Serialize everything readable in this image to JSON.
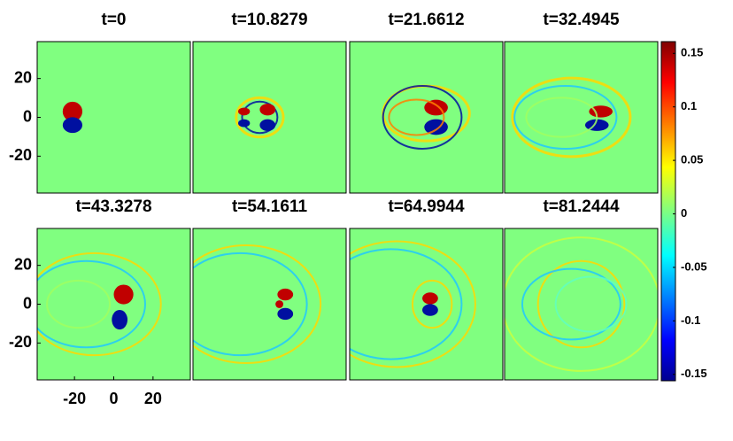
{
  "panels": [
    {
      "title": "t=0"
    },
    {
      "title": "t=10.8279"
    },
    {
      "title": "t=21.6612"
    },
    {
      "title": "t=32.4945"
    },
    {
      "title": "t=43.3278"
    },
    {
      "title": "t=54.1611"
    },
    {
      "title": "t=64.9944"
    },
    {
      "title": "t=81.2444"
    }
  ],
  "axes": {
    "xlim": [
      -39,
      39
    ],
    "ylim": [
      -39,
      39
    ],
    "xticks": [
      -20,
      0,
      20
    ],
    "yticks": [
      20,
      0,
      -20
    ]
  },
  "colorbar": {
    "lim": [
      -0.156,
      0.161
    ],
    "ticks": [
      0.15,
      0.1,
      0.05,
      0,
      -0.05,
      -0.1,
      -0.15
    ]
  }
}
